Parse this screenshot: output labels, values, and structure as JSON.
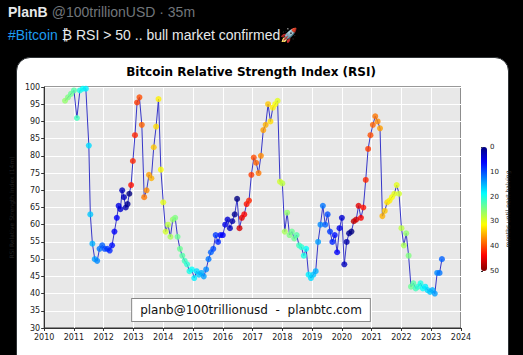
{
  "tweet": {
    "name": "PlanB",
    "meta": "@100trillionUSD · 35m",
    "text": "#Bitcoin ₿ RSI > 50 .. bull market confirmed🚀"
  },
  "chart_data": {
    "type": "line",
    "title": "Bitcoin Relative Strength Index (RSI)",
    "ylabel": "RSI Relative Strength Index (14m)",
    "annotation": "planb@100trillionusd  -  planbtc.com",
    "color": "#3636c8",
    "marker": "circle",
    "grid": true,
    "xlim": [
      2010,
      2024
    ],
    "xticks": [
      2010,
      2011,
      2012,
      2013,
      2014,
      2015,
      2016,
      2017,
      2018,
      2019,
      2020,
      2021,
      2022,
      2023,
      2024
    ],
    "ylim": [
      30,
      100
    ],
    "yticks": [
      30,
      35,
      40,
      45,
      50,
      55,
      60,
      65,
      70,
      75,
      80,
      85,
      90,
      95,
      100
    ],
    "x": [
      2010.7,
      2010.8,
      2010.9,
      2011,
      2011.1,
      2011.2,
      2011.3,
      2011.4,
      2011.5,
      2011.55,
      2011.62,
      2011.7,
      2011.78,
      2011.86,
      2011.95,
      2012.03,
      2012.12,
      2012.2,
      2012.28,
      2012.36,
      2012.44,
      2012.5,
      2012.56,
      2012.62,
      2012.68,
      2012.74,
      2012.8,
      2012.86,
      2012.92,
      2012.98,
      2013.05,
      2013.12,
      2013.2,
      2013.28,
      2013.36,
      2013.44,
      2013.52,
      2013.6,
      2013.68,
      2013.76,
      2013.84,
      2013.92,
      2014,
      2014.08,
      2014.16,
      2014.24,
      2014.32,
      2014.4,
      2014.48,
      2014.56,
      2014.64,
      2014.72,
      2014.8,
      2014.88,
      2014.96,
      2015.04,
      2015.12,
      2015.2,
      2015.28,
      2015.36,
      2015.44,
      2015.52,
      2015.6,
      2015.68,
      2015.76,
      2015.84,
      2015.92,
      2016,
      2016.08,
      2016.16,
      2016.24,
      2016.32,
      2016.4,
      2016.48,
      2016.56,
      2016.64,
      2016.72,
      2016.8,
      2016.88,
      2016.96,
      2017.04,
      2017.12,
      2017.2,
      2017.28,
      2017.36,
      2017.44,
      2017.52,
      2017.6,
      2017.68,
      2017.76,
      2017.84,
      2017.92,
      2018,
      2018.08,
      2018.16,
      2018.24,
      2018.32,
      2018.4,
      2018.48,
      2018.56,
      2018.64,
      2018.72,
      2018.8,
      2018.88,
      2018.96,
      2019.04,
      2019.12,
      2019.2,
      2019.28,
      2019.36,
      2019.44,
      2019.52,
      2019.6,
      2019.68,
      2019.76,
      2019.84,
      2019.92,
      2020,
      2020.08,
      2020.16,
      2020.24,
      2020.32,
      2020.4,
      2020.48,
      2020.56,
      2020.64,
      2020.72,
      2020.8,
      2020.88,
      2020.96,
      2021.04,
      2021.12,
      2021.2,
      2021.28,
      2021.36,
      2021.44,
      2021.52,
      2021.6,
      2021.68,
      2021.76,
      2021.84,
      2021.92,
      2022,
      2022.08,
      2022.16,
      2022.24,
      2022.32,
      2022.4,
      2022.48,
      2022.56,
      2022.64,
      2022.72,
      2022.8,
      2022.88,
      2022.96,
      2023.04,
      2023.12,
      2023.2,
      2023.28,
      2023.36
    ],
    "values": [
      96,
      97,
      98,
      99,
      91,
      99,
      99.5,
      99.5,
      83,
      63,
      54.5,
      50,
      49.5,
      53,
      54,
      53,
      53,
      52.5,
      54,
      58,
      62,
      65.5,
      64.5,
      70,
      68,
      65,
      66,
      69,
      71.5,
      78.5,
      86,
      95.5,
      97,
      89,
      68,
      70,
      74.5,
      73.5,
      82.5,
      88.5,
      96.5,
      76,
      66.5,
      58,
      60,
      56.5,
      61.5,
      62,
      56.5,
      53,
      51,
      49.5,
      48.5,
      46.5,
      47,
      44.5,
      46.5,
      45.5,
      46,
      45,
      47,
      50,
      52,
      53,
      57,
      55,
      57,
      57,
      60,
      61.5,
      59,
      61,
      63,
      67.5,
      59,
      62,
      63,
      66,
      67,
      74.5,
      79.5,
      78,
      75,
      80,
      87.5,
      89,
      95,
      90,
      94,
      95,
      96,
      72.5,
      72,
      58,
      63.5,
      57,
      58,
      56,
      57,
      54,
      53.5,
      51,
      53,
      45.5,
      44.5,
      45.5,
      46.5,
      55,
      60,
      65.5,
      60,
      63,
      58,
      55,
      57,
      52,
      59,
      62,
      48.5,
      55,
      57.5,
      58,
      61,
      61.5,
      65.5,
      62,
      65,
      73,
      82,
      86,
      89,
      91.5,
      90,
      88,
      62.5,
      64,
      66.5,
      67,
      68,
      69,
      71.5,
      69,
      59,
      54,
      57.5,
      51,
      42,
      43,
      41.5,
      42,
      43,
      41.5,
      42,
      41,
      40.5,
      41,
      40,
      46,
      46,
      50
    ],
    "months_until_next_halving": [
      26,
      25,
      24,
      23,
      22,
      20,
      19,
      18,
      17,
      16,
      15,
      14,
      13,
      12,
      11,
      10,
      9,
      8,
      7,
      6,
      6,
      5,
      4,
      3,
      3,
      2,
      1,
      0,
      43,
      42,
      42,
      41,
      40,
      39,
      38,
      37,
      36,
      35,
      34,
      33,
      32,
      31,
      30,
      29,
      28,
      27,
      26,
      25,
      24,
      24,
      23,
      22,
      21,
      20,
      19,
      18,
      17,
      16,
      15,
      14,
      13,
      12,
      11,
      10,
      9,
      8,
      7,
      6,
      5,
      4,
      3,
      2,
      1,
      0,
      46,
      45,
      44,
      43,
      42,
      41,
      40,
      39,
      38,
      37,
      36,
      35,
      34,
      33,
      32,
      31,
      30,
      29,
      28,
      27,
      26,
      25,
      24,
      24,
      23,
      22,
      21,
      20,
      19,
      18,
      17,
      16,
      15,
      14,
      13,
      12,
      11,
      10,
      9,
      8,
      7,
      6,
      5,
      4,
      3,
      2,
      1,
      0,
      47,
      46,
      45,
      44,
      43,
      42,
      41,
      40,
      39,
      38,
      37,
      36,
      35,
      34,
      33,
      32,
      31,
      30,
      30,
      29,
      28,
      27,
      26,
      25,
      24,
      23,
      22,
      21,
      20,
      19,
      18,
      17,
      16,
      15,
      14,
      13,
      12,
      11
    ],
    "colorbar": {
      "label": "months until next halving",
      "range": [
        0,
        50
      ],
      "ticks": [
        0,
        10,
        20,
        30,
        40,
        50
      ]
    }
  }
}
